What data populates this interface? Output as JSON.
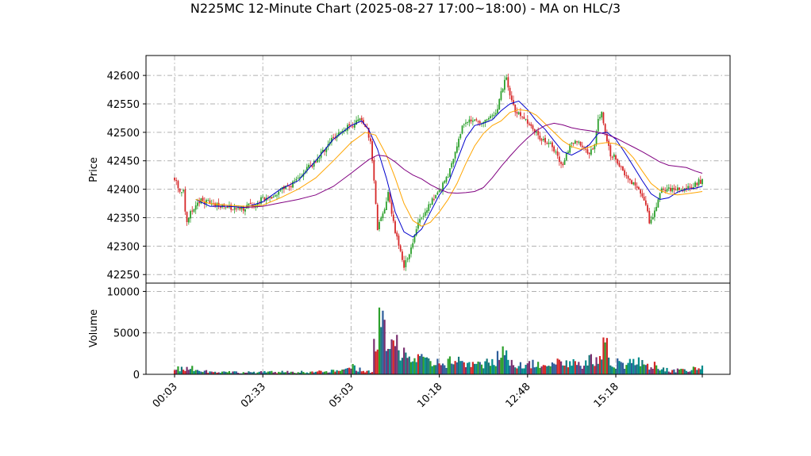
{
  "chart_data": {
    "type": "candlestick",
    "title": "N225MC 12-Minute Chart (2025-08-27 17:00~18:00) - MA on HLC/3",
    "price_panel": {
      "ylabel": "Price",
      "ylim": [
        42235,
        42635
      ],
      "yticks": [
        42250,
        42300,
        42350,
        42400,
        42450,
        42500,
        42550,
        42600
      ],
      "grid": true,
      "candle_colors": {
        "up": "#2ca02c",
        "down": "#d62728"
      },
      "price_path": [
        [
          0,
          42420
        ],
        [
          3,
          42392
        ],
        [
          5,
          42402
        ],
        [
          6,
          42362
        ],
        [
          7,
          42340
        ],
        [
          9,
          42362
        ],
        [
          12,
          42370
        ],
        [
          15,
          42380
        ],
        [
          20,
          42376
        ],
        [
          25,
          42372
        ],
        [
          30,
          42370
        ],
        [
          35,
          42364
        ],
        [
          40,
          42368
        ],
        [
          45,
          42374
        ],
        [
          50,
          42384
        ],
        [
          55,
          42388
        ],
        [
          60,
          42398
        ],
        [
          65,
          42404
        ],
        [
          70,
          42418
        ],
        [
          75,
          42435
        ],
        [
          80,
          42450
        ],
        [
          85,
          42470
        ],
        [
          90,
          42490
        ],
        [
          95,
          42505
        ],
        [
          100,
          42512
        ],
        [
          105,
          42520
        ],
        [
          109,
          42508
        ],
        [
          111,
          42480
        ],
        [
          113,
          42420
        ],
        [
          115,
          42330
        ],
        [
          118,
          42355
        ],
        [
          121,
          42392
        ],
        [
          124,
          42340
        ],
        [
          127,
          42300
        ],
        [
          130,
          42262
        ],
        [
          133,
          42290
        ],
        [
          136,
          42320
        ],
        [
          139,
          42350
        ],
        [
          142,
          42362
        ],
        [
          146,
          42380
        ],
        [
          150,
          42398
        ],
        [
          154,
          42418
        ],
        [
          158,
          42450
        ],
        [
          161,
          42490
        ],
        [
          163,
          42512
        ],
        [
          166,
          42520
        ],
        [
          170,
          42518
        ],
        [
          174,
          42516
        ],
        [
          178,
          42522
        ],
        [
          182,
          42532
        ],
        [
          185,
          42570
        ],
        [
          188,
          42598
        ],
        [
          190,
          42560
        ],
        [
          193,
          42540
        ],
        [
          196,
          42530
        ],
        [
          200,
          42518
        ],
        [
          204,
          42500
        ],
        [
          208,
          42488
        ],
        [
          212,
          42480
        ],
        [
          215,
          42470
        ],
        [
          218,
          42450
        ],
        [
          220,
          42440
        ],
        [
          223,
          42470
        ],
        [
          226,
          42484
        ],
        [
          229,
          42482
        ],
        [
          232,
          42470
        ],
        [
          235,
          42462
        ],
        [
          238,
          42480
        ],
        [
          240,
          42520
        ],
        [
          242,
          42536
        ],
        [
          244,
          42500
        ],
        [
          247,
          42462
        ],
        [
          250,
          42455
        ],
        [
          253,
          42440
        ],
        [
          256,
          42422
        ],
        [
          260,
          42410
        ],
        [
          263,
          42400
        ],
        [
          266,
          42385
        ],
        [
          269,
          42345
        ],
        [
          272,
          42360
        ],
        [
          275,
          42395
        ],
        [
          279,
          42402
        ],
        [
          283,
          42396
        ],
        [
          287,
          42400
        ],
        [
          290,
          42404
        ],
        [
          293,
          42400
        ],
        [
          296,
          42412
        ],
        [
          299,
          42415
        ]
      ],
      "ma_series": [
        {
          "color": "#0000cc",
          "points": [
            [
              12,
              42382
            ],
            [
              20,
              42370
            ],
            [
              30,
              42370
            ],
            [
              40,
              42368
            ],
            [
              50,
              42378
            ],
            [
              60,
              42400
            ],
            [
              70,
              42415
            ],
            [
              80,
              42450
            ],
            [
              90,
              42488
            ],
            [
              100,
              42512
            ],
            [
              106,
              42520
            ],
            [
              110,
              42505
            ],
            [
              115,
              42470
            ],
            [
              120,
              42420
            ],
            [
              125,
              42360
            ],
            [
              130,
              42325
            ],
            [
              135,
              42316
            ],
            [
              140,
              42330
            ],
            [
              145,
              42360
            ],
            [
              150,
              42390
            ],
            [
              155,
              42410
            ],
            [
              160,
              42450
            ],
            [
              165,
              42490
            ],
            [
              170,
              42512
            ],
            [
              175,
              42516
            ],
            [
              180,
              42522
            ],
            [
              185,
              42538
            ],
            [
              190,
              42550
            ],
            [
              195,
              42555
            ],
            [
              200,
              42540
            ],
            [
              205,
              42520
            ],
            [
              210,
              42505
            ],
            [
              215,
              42485
            ],
            [
              220,
              42466
            ],
            [
              225,
              42460
            ],
            [
              230,
              42468
            ],
            [
              235,
              42478
            ],
            [
              240,
              42498
            ],
            [
              245,
              42500
            ],
            [
              250,
              42488
            ],
            [
              255,
              42465
            ],
            [
              260,
              42440
            ],
            [
              265,
              42415
            ],
            [
              270,
              42392
            ],
            [
              275,
              42382
            ],
            [
              280,
              42385
            ],
            [
              285,
              42395
            ],
            [
              290,
              42400
            ],
            [
              295,
              42402
            ],
            [
              299,
              42405
            ]
          ]
        },
        {
          "color": "#ffa500",
          "points": [
            [
              12,
              42382
            ],
            [
              20,
              42375
            ],
            [
              30,
              42372
            ],
            [
              40,
              42370
            ],
            [
              50,
              42372
            ],
            [
              60,
              42385
            ],
            [
              70,
              42400
            ],
            [
              80,
              42420
            ],
            [
              90,
              42450
            ],
            [
              100,
              42482
            ],
            [
              108,
              42500
            ],
            [
              114,
              42495
            ],
            [
              120,
              42460
            ],
            [
              125,
              42420
            ],
            [
              130,
              42375
            ],
            [
              135,
              42345
            ],
            [
              140,
              42335
            ],
            [
              145,
              42342
            ],
            [
              150,
              42360
            ],
            [
              155,
              42382
            ],
            [
              160,
              42410
            ],
            [
              165,
              42445
            ],
            [
              170,
              42476
            ],
            [
              175,
              42498
            ],
            [
              180,
              42512
            ],
            [
              185,
              42520
            ],
            [
              190,
              42535
            ],
            [
              195,
              42540
            ],
            [
              200,
              42538
            ],
            [
              205,
              42530
            ],
            [
              210,
              42515
            ],
            [
              215,
              42500
            ],
            [
              220,
              42485
            ],
            [
              225,
              42475
            ],
            [
              230,
              42470
            ],
            [
              235,
              42474
            ],
            [
              240,
              42480
            ],
            [
              245,
              42482
            ],
            [
              250,
              42480
            ],
            [
              255,
              42472
            ],
            [
              260,
              42455
            ],
            [
              265,
              42432
            ],
            [
              270,
              42410
            ],
            [
              275,
              42398
            ],
            [
              280,
              42392
            ],
            [
              285,
              42390
            ],
            [
              290,
              42392
            ],
            [
              295,
              42394
            ],
            [
              299,
              42396
            ]
          ]
        },
        {
          "color": "#800080",
          "points": [
            [
              40,
              42368
            ],
            [
              50,
              42370
            ],
            [
              60,
              42376
            ],
            [
              70,
              42382
            ],
            [
              80,
              42390
            ],
            [
              90,
              42405
            ],
            [
              100,
              42428
            ],
            [
              110,
              42452
            ],
            [
              115,
              42460
            ],
            [
              120,
              42458
            ],
            [
              125,
              42448
            ],
            [
              130,
              42435
            ],
            [
              135,
              42425
            ],
            [
              140,
              42418
            ],
            [
              145,
              42408
            ],
            [
              150,
              42400
            ],
            [
              155,
              42394
            ],
            [
              160,
              42393
            ],
            [
              165,
              42394
            ],
            [
              170,
              42396
            ],
            [
              175,
              42403
            ],
            [
              180,
              42420
            ],
            [
              185,
              42440
            ],
            [
              190,
              42458
            ],
            [
              195,
              42475
            ],
            [
              200,
              42490
            ],
            [
              205,
              42503
            ],
            [
              210,
              42512
            ],
            [
              215,
              42516
            ],
            [
              220,
              42513
            ],
            [
              225,
              42508
            ],
            [
              230,
              42505
            ],
            [
              235,
              42503
            ],
            [
              240,
              42500
            ],
            [
              245,
              42496
            ],
            [
              250,
              42490
            ],
            [
              255,
              42482
            ],
            [
              260,
              42474
            ],
            [
              265,
              42466
            ],
            [
              270,
              42457
            ],
            [
              275,
              42448
            ],
            [
              280,
              42442
            ],
            [
              285,
              42440
            ],
            [
              290,
              42438
            ],
            [
              295,
              42432
            ],
            [
              299,
              42428
            ]
          ]
        }
      ]
    },
    "volume_panel": {
      "ylabel": "Volume",
      "ylim": [
        0,
        11000
      ],
      "yticks": [
        0,
        5000,
        10000
      ],
      "grid": true,
      "bar_colors": [
        "#d62728",
        "#17777a",
        "#7a3070",
        "#2d5d9a",
        "#008b8b",
        "#2ca02c"
      ],
      "profile": [
        [
          0,
          800
        ],
        [
          5,
          700
        ],
        [
          8,
          1100
        ],
        [
          12,
          500
        ],
        [
          20,
          350
        ],
        [
          40,
          250
        ],
        [
          60,
          300
        ],
        [
          80,
          300
        ],
        [
          95,
          450
        ],
        [
          100,
          950
        ],
        [
          104,
          650
        ],
        [
          108,
          300
        ],
        [
          112,
          400
        ],
        [
          113,
          4900
        ],
        [
          115,
          2500
        ],
        [
          116,
          10200
        ],
        [
          117,
          6600
        ],
        [
          118,
          5300
        ],
        [
          120,
          3800
        ],
        [
          123,
          3300
        ],
        [
          127,
          3700
        ],
        [
          132,
          2300
        ],
        [
          140,
          1700
        ],
        [
          150,
          1400
        ],
        [
          160,
          1700
        ],
        [
          170,
          1000
        ],
        [
          180,
          1700
        ],
        [
          185,
          2700
        ],
        [
          190,
          1700
        ],
        [
          200,
          1200
        ],
        [
          210,
          1400
        ],
        [
          220,
          1600
        ],
        [
          230,
          1300
        ],
        [
          240,
          2000
        ],
        [
          244,
          3600
        ],
        [
          248,
          1500
        ],
        [
          255,
          1400
        ],
        [
          262,
          1500
        ],
        [
          270,
          1200
        ],
        [
          280,
          500
        ],
        [
          290,
          500
        ],
        [
          299,
          800
        ]
      ]
    },
    "x_axis": {
      "count": 300,
      "tick_labels": [
        "00:03",
        "02:33",
        "05:03",
        "10:18",
        "12:48",
        "15:18"
      ],
      "tick_positions": [
        0,
        50,
        100,
        150,
        200,
        250
      ]
    }
  }
}
